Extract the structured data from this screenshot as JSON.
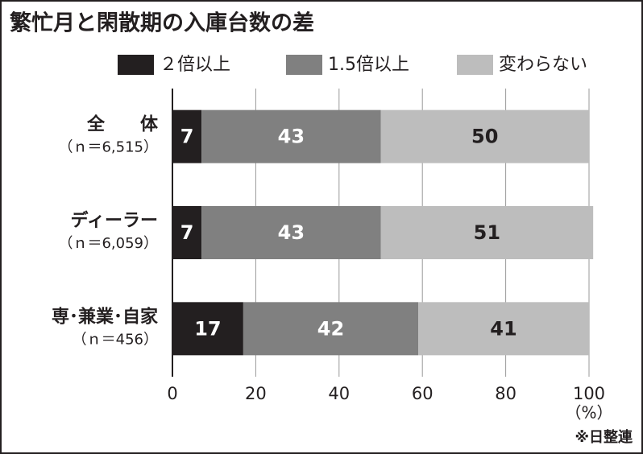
{
  "chart_data": {
    "type": "stacked-bar-horizontal",
    "title": "繁忙月と閑散期の入庫台数の差",
    "categories": [
      [
        "全　　体",
        "（ｎ＝6,515）"
      ],
      [
        "ディーラー",
        "（ｎ＝6,059）"
      ],
      [
        "専･兼業･自家",
        "（ｎ＝456）"
      ]
    ],
    "series": [
      {
        "name": "２倍以上",
        "color": "#231f20",
        "label_color": "#ffffff",
        "values": [
          7,
          7,
          17
        ]
      },
      {
        "name": "1.5倍以上",
        "color": "#808080",
        "label_color": "#ffffff",
        "values": [
          43,
          43,
          42
        ]
      },
      {
        "name": "変わらない",
        "color": "#bdbdbd",
        "label_color": "#231f20",
        "values": [
          50,
          51,
          41
        ]
      }
    ],
    "xlim": [
      0,
      100
    ],
    "xticks": [
      0,
      20,
      40,
      60,
      80,
      100
    ],
    "x_unit": "（%）",
    "source": "※日整連",
    "grid": true
  }
}
